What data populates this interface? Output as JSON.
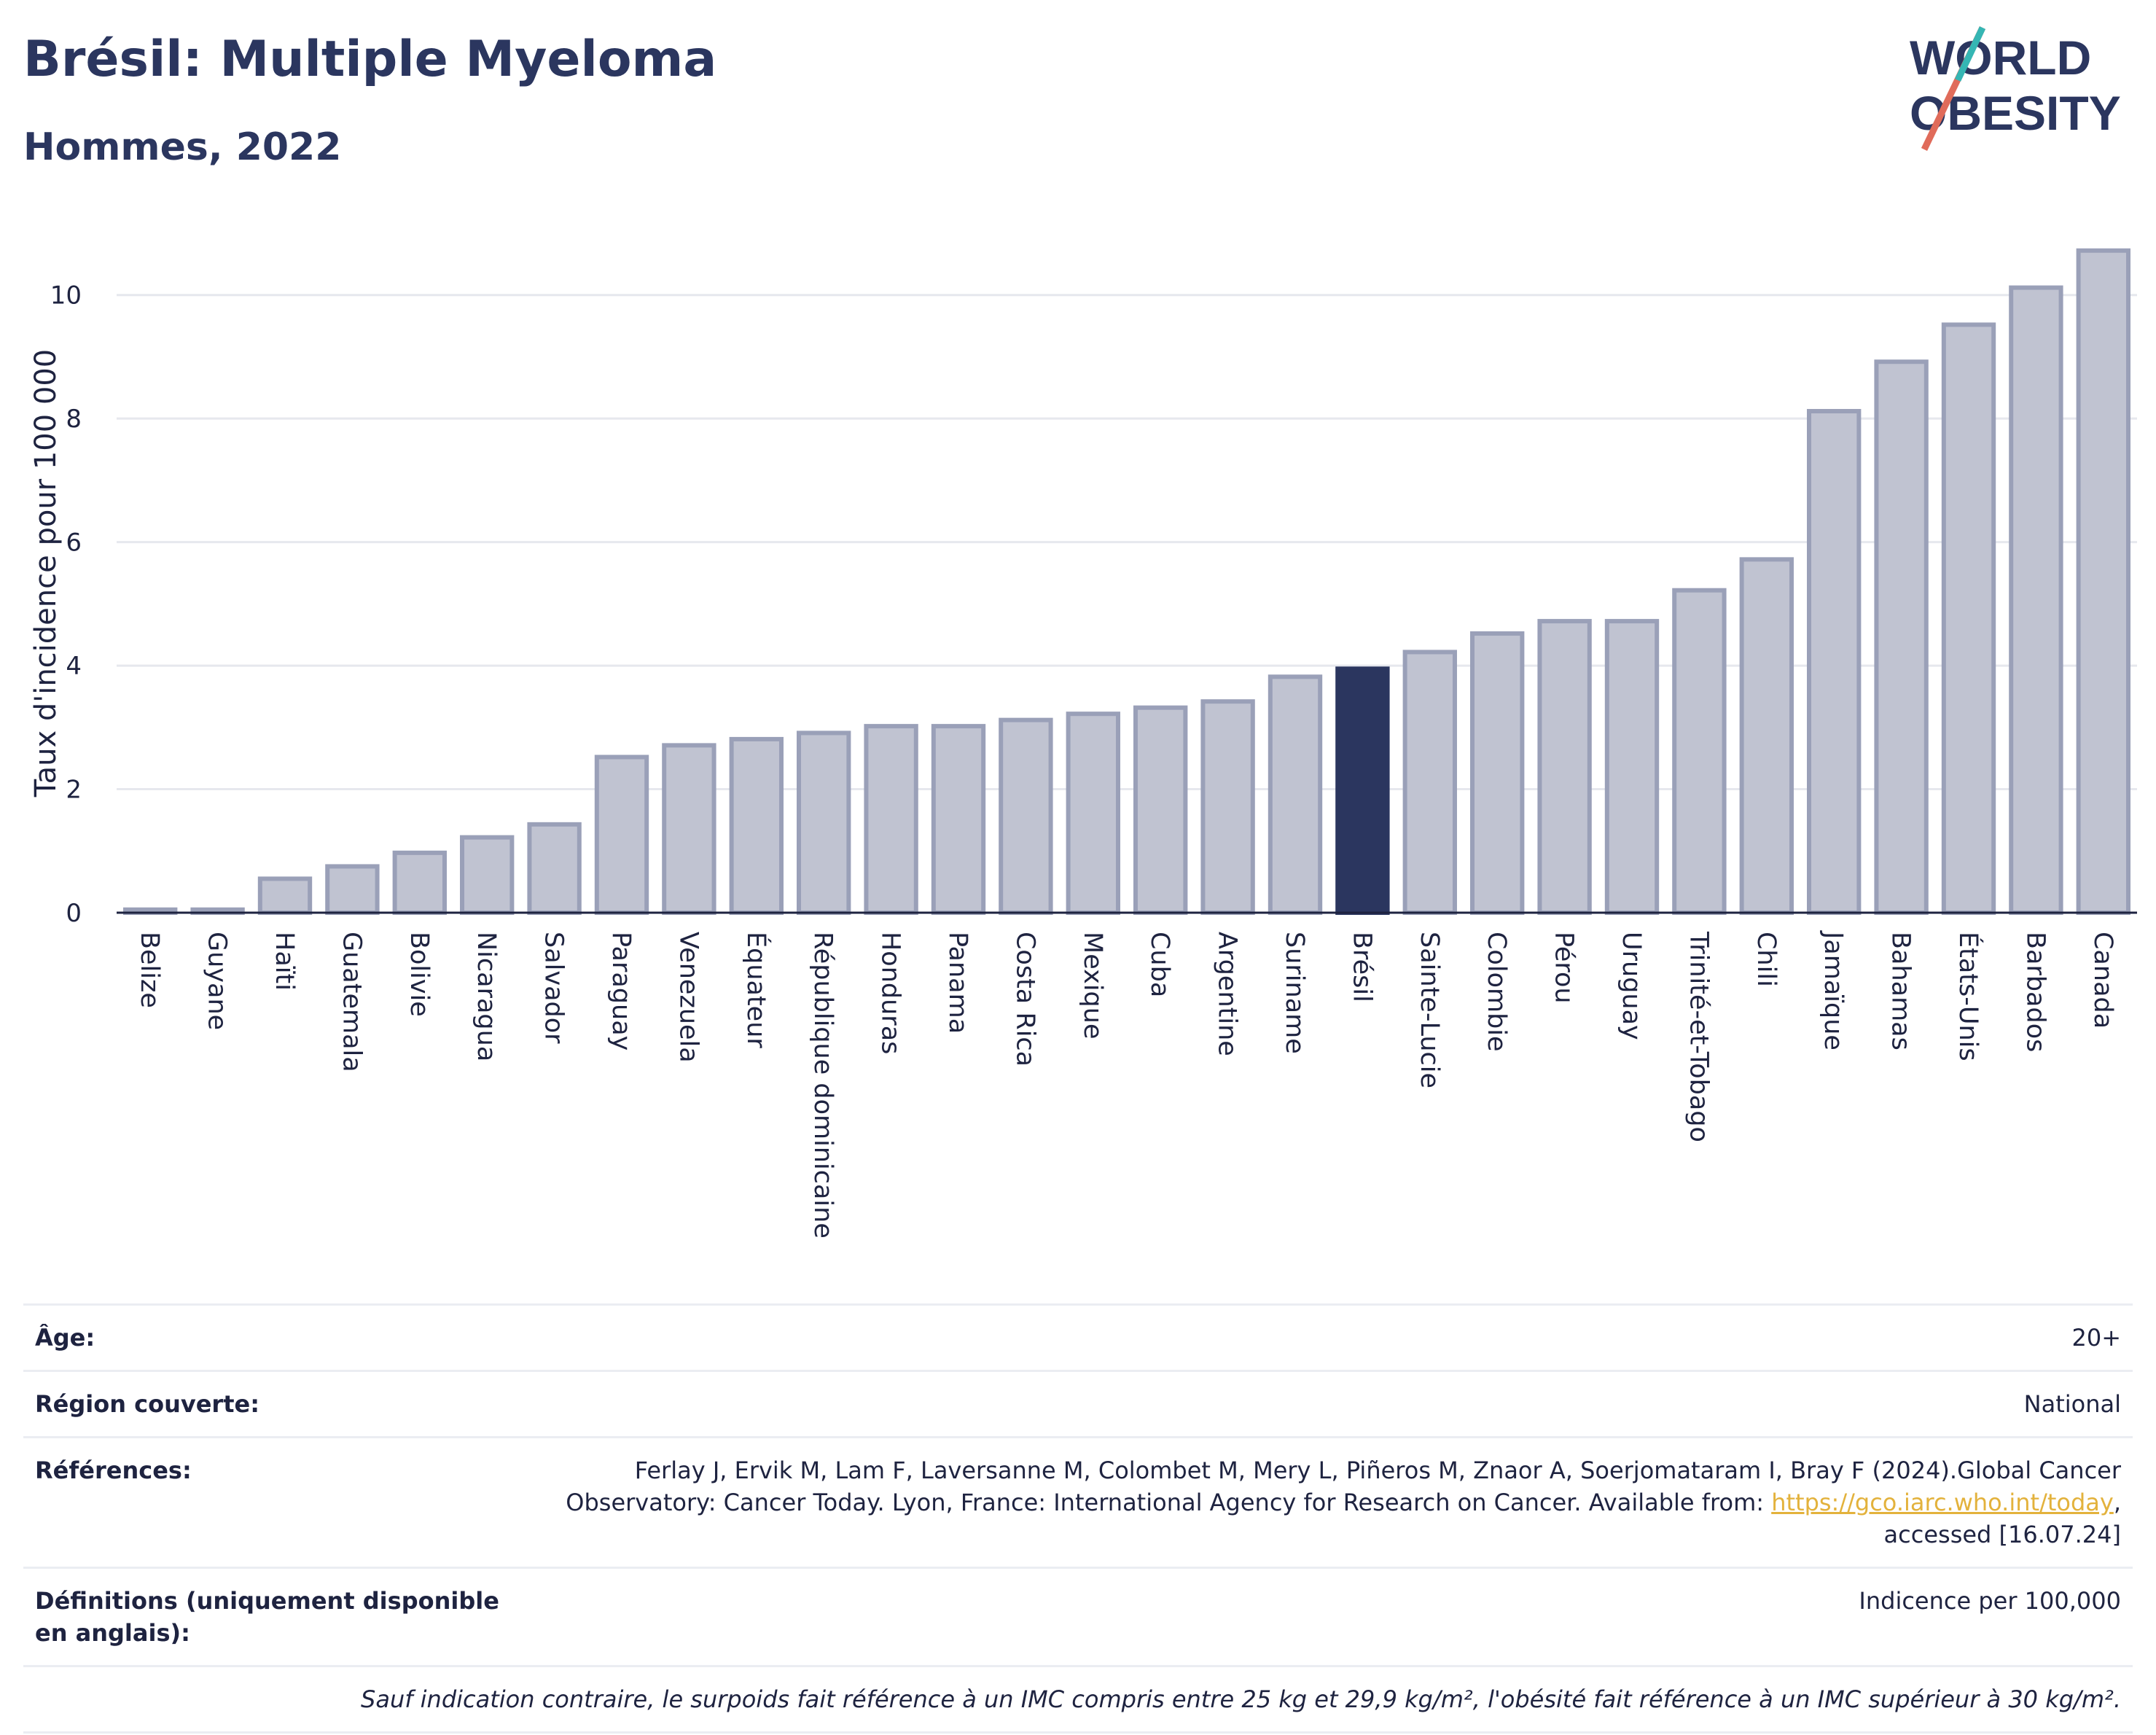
{
  "header": {
    "title": "Brésil: Multiple Myeloma",
    "subtitle": "Hommes, 2022"
  },
  "logo": {
    "line1": "WORLD",
    "line2": "OBESITY"
  },
  "colors": {
    "bar": "#c0c3d1",
    "bar_stroke": "#9aa0b8",
    "highlight": "#2b365f",
    "grid": "#e6e8ee",
    "axis": "#1e2340"
  },
  "chart_data": {
    "type": "bar",
    "ylabel": "Taux d'incidence pour 100 000",
    "ylim": [
      0,
      11
    ],
    "yticks": [
      0,
      2,
      4,
      6,
      8,
      10
    ],
    "grid": true,
    "highlight": "Brésil",
    "categories": [
      "Belize",
      "Guyane",
      "Haïti",
      "Guatemala",
      "Bolivie",
      "Nicaragua",
      "Salvador",
      "Paraguay",
      "Venezuela",
      "Équateur",
      "République dominicaine",
      "Honduras",
      "Panama",
      "Costa Rica",
      "Mexique",
      "Cuba",
      "Argentine",
      "Suriname",
      "Brésil",
      "Sainte-Lucie",
      "Colombie",
      "Pérou",
      "Uruguay",
      "Trinité-et-Tobago",
      "Chili",
      "Jamaïque",
      "Bahamas",
      "États-Unis",
      "Barbados",
      "Canada"
    ],
    "values": [
      0.05,
      0.05,
      0.55,
      0.75,
      0.97,
      1.22,
      1.43,
      2.52,
      2.71,
      2.81,
      2.91,
      3.02,
      3.02,
      3.12,
      3.22,
      3.32,
      3.42,
      3.82,
      3.95,
      4.22,
      4.52,
      4.72,
      4.72,
      5.22,
      5.72,
      8.12,
      8.92,
      9.52,
      10.12,
      10.72
    ]
  },
  "info": {
    "age_label": "Âge:",
    "age_value": "20+",
    "region_label": "Région couverte:",
    "region_value": "National",
    "refs_label": "Références:",
    "refs_text1": "Ferlay J, Ervik M, Lam F, Laversanne M, Colombet M, Mery L, Piñeros M, Znaor A, Soerjomataram I, Bray F (2024).Global Cancer",
    "refs_text2": "Observatory: Cancer Today. Lyon, France: International Agency for Research on Cancer. Available from: ",
    "refs_link": "https://gco.iarc.who.int/today",
    "refs_text3": ",",
    "refs_text4": "accessed [16.07.24]",
    "defs_label": "Définitions (uniquement disponible en anglais):",
    "defs_value": "Indicence per 100,000",
    "note": "Sauf indication contraire, le surpoids fait référence à un IMC compris entre 25 kg et 29,9 kg/m², l'obésité fait référence à un IMC supérieur à 30 kg/m²."
  }
}
